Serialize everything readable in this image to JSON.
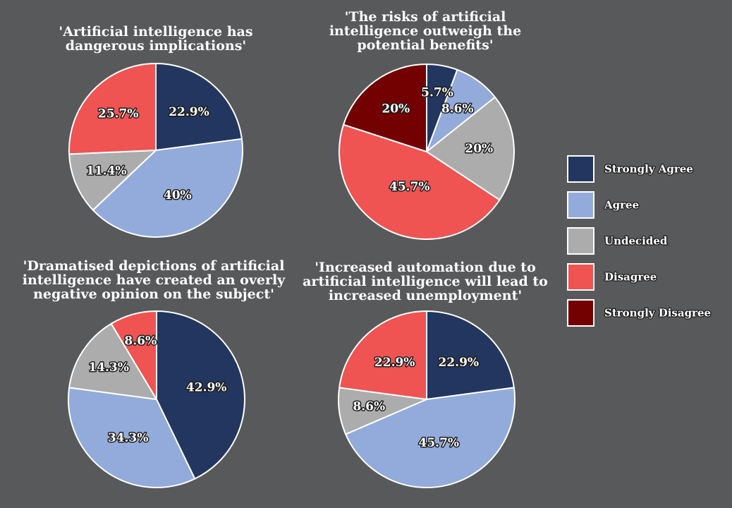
{
  "colors": {
    "Strongly Agree": "#22365f",
    "Agree": "#92abdb",
    "Undecided": "#acacac",
    "Disagree": "#ef5352",
    "Strongly Disagree": "#730101"
  },
  "legend": {
    "placement": "right",
    "items": [
      "Strongly Agree",
      "Agree",
      "Undecided",
      "Disagree",
      "Strongly Disagree"
    ]
  },
  "chart_data": [
    {
      "type": "pie",
      "title": [
        "'Artificial intelligence has",
        "dangerous implications'"
      ],
      "categories": [
        "Strongly Agree",
        "Agree",
        "Undecided",
        "Disagree"
      ],
      "values": [
        22.9,
        40,
        11.4,
        25.7
      ],
      "labels": [
        "22.9%",
        "40%",
        "11.4%",
        "25.7%"
      ]
    },
    {
      "type": "pie",
      "title": [
        "'The risks of artificial",
        "intelligence outweigh the",
        "potential benefits'"
      ],
      "categories": [
        "Strongly Agree",
        "Agree",
        "Undecided",
        "Disagree",
        "Strongly Disagree"
      ],
      "values": [
        5.7,
        8.6,
        20,
        45.7,
        20
      ],
      "labels": [
        "5.7%",
        "8.6%",
        "20%",
        "45.7%",
        "20%"
      ]
    },
    {
      "type": "pie",
      "title": [
        "'Dramatised depictions of artificial",
        "intelligence have created an overly",
        "negative opinion on the subject'"
      ],
      "categories": [
        "Strongly Agree",
        "Agree",
        "Undecided",
        "Disagree"
      ],
      "values": [
        42.9,
        34.3,
        14.3,
        8.6
      ],
      "labels": [
        "42.9%",
        "34.3%",
        "14.3%",
        "8.6%"
      ]
    },
    {
      "type": "pie",
      "title": [
        "'Increased automation due to",
        "artificial intelligence will lead to",
        "increased unemployment'"
      ],
      "categories": [
        "Strongly Agree",
        "Agree",
        "Undecided",
        "Disagree"
      ],
      "values": [
        22.9,
        45.7,
        8.6,
        22.9
      ],
      "labels": [
        "22.9%",
        "45.7%",
        "8.6%",
        "22.9%"
      ]
    }
  ]
}
